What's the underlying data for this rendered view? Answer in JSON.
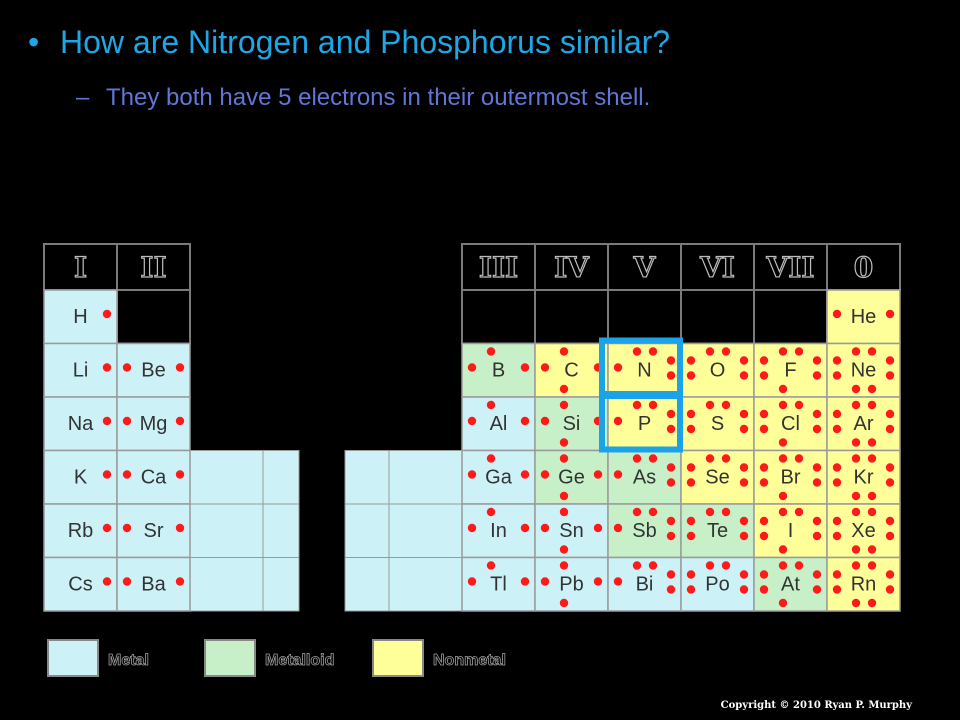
{
  "slide": {
    "bullet": "•",
    "title": "How are Nitrogen and Phosphorus similar?",
    "sub_dash": "–",
    "subtitle": "They both have 5 electrons in their outermost shell."
  },
  "copyright": "Copyright © 2010 Ryan P. Murphy",
  "groups": [
    "I",
    "II",
    "III",
    "IV",
    "V",
    "VI",
    "VII",
    "0"
  ],
  "colors": {
    "metal": "#ccf2f8",
    "metalloid": "#c8f0c8",
    "nonmetal": "#ffff99",
    "electron": "#ff1a1a",
    "highlight": "#1aa3e8"
  },
  "legend": [
    {
      "type": "metal",
      "label": "Metal"
    },
    {
      "type": "metalloid",
      "label": "Metalloid"
    },
    {
      "type": "nonmetal",
      "label": "Nonmetal"
    }
  ],
  "highlighted": [
    "N",
    "P"
  ],
  "elements": [
    {
      "symbol": "H",
      "group": 1,
      "row": 1,
      "type": "metal",
      "electrons": 1
    },
    {
      "symbol": "Li",
      "group": 1,
      "row": 2,
      "type": "metal",
      "electrons": 1
    },
    {
      "symbol": "Na",
      "group": 1,
      "row": 3,
      "type": "metal",
      "electrons": 1
    },
    {
      "symbol": "K",
      "group": 1,
      "row": 4,
      "type": "metal",
      "electrons": 1
    },
    {
      "symbol": "Rb",
      "group": 1,
      "row": 5,
      "type": "metal",
      "electrons": 1
    },
    {
      "symbol": "Cs",
      "group": 1,
      "row": 6,
      "type": "metal",
      "electrons": 1
    },
    {
      "symbol": "Be",
      "group": 2,
      "row": 2,
      "type": "metal",
      "electrons": 2
    },
    {
      "symbol": "Mg",
      "group": 2,
      "row": 3,
      "type": "metal",
      "electrons": 2
    },
    {
      "symbol": "Ca",
      "group": 2,
      "row": 4,
      "type": "metal",
      "electrons": 2
    },
    {
      "symbol": "Sr",
      "group": 2,
      "row": 5,
      "type": "metal",
      "electrons": 2
    },
    {
      "symbol": "Ba",
      "group": 2,
      "row": 6,
      "type": "metal",
      "electrons": 2
    },
    {
      "symbol": "B",
      "group": 3,
      "row": 2,
      "type": "metalloid",
      "electrons": 3
    },
    {
      "symbol": "Al",
      "group": 3,
      "row": 3,
      "type": "metal",
      "electrons": 3
    },
    {
      "symbol": "Ga",
      "group": 3,
      "row": 4,
      "type": "metal",
      "electrons": 3
    },
    {
      "symbol": "In",
      "group": 3,
      "row": 5,
      "type": "metal",
      "electrons": 3
    },
    {
      "symbol": "Tl",
      "group": 3,
      "row": 6,
      "type": "metal",
      "electrons": 3
    },
    {
      "symbol": "C",
      "group": 4,
      "row": 2,
      "type": "nonmetal",
      "electrons": 4
    },
    {
      "symbol": "Si",
      "group": 4,
      "row": 3,
      "type": "metalloid",
      "electrons": 4
    },
    {
      "symbol": "Ge",
      "group": 4,
      "row": 4,
      "type": "metalloid",
      "electrons": 4
    },
    {
      "symbol": "Sn",
      "group": 4,
      "row": 5,
      "type": "metal",
      "electrons": 4
    },
    {
      "symbol": "Pb",
      "group": 4,
      "row": 6,
      "type": "metal",
      "electrons": 4
    },
    {
      "symbol": "N",
      "group": 5,
      "row": 2,
      "type": "nonmetal",
      "electrons": 5
    },
    {
      "symbol": "P",
      "group": 5,
      "row": 3,
      "type": "nonmetal",
      "electrons": 5
    },
    {
      "symbol": "As",
      "group": 5,
      "row": 4,
      "type": "metalloid",
      "electrons": 5
    },
    {
      "symbol": "Sb",
      "group": 5,
      "row": 5,
      "type": "metalloid",
      "electrons": 5
    },
    {
      "symbol": "Bi",
      "group": 5,
      "row": 6,
      "type": "metal",
      "electrons": 5
    },
    {
      "symbol": "O",
      "group": 6,
      "row": 2,
      "type": "nonmetal",
      "electrons": 6
    },
    {
      "symbol": "S",
      "group": 6,
      "row": 3,
      "type": "nonmetal",
      "electrons": 6
    },
    {
      "symbol": "Se",
      "group": 6,
      "row": 4,
      "type": "nonmetal",
      "electrons": 6
    },
    {
      "symbol": "Te",
      "group": 6,
      "row": 5,
      "type": "metalloid",
      "electrons": 6
    },
    {
      "symbol": "Po",
      "group": 6,
      "row": 6,
      "type": "metal",
      "electrons": 6
    },
    {
      "symbol": "F",
      "group": 7,
      "row": 2,
      "type": "nonmetal",
      "electrons": 7
    },
    {
      "symbol": "Cl",
      "group": 7,
      "row": 3,
      "type": "nonmetal",
      "electrons": 7
    },
    {
      "symbol": "Br",
      "group": 7,
      "row": 4,
      "type": "nonmetal",
      "electrons": 7
    },
    {
      "symbol": "I",
      "group": 7,
      "row": 5,
      "type": "nonmetal",
      "electrons": 7
    },
    {
      "symbol": "At",
      "group": 7,
      "row": 6,
      "type": "metalloid",
      "electrons": 7
    },
    {
      "symbol": "He",
      "group": 8,
      "row": 1,
      "type": "nonmetal",
      "electrons": 2
    },
    {
      "symbol": "Ne",
      "group": 8,
      "row": 2,
      "type": "nonmetal",
      "electrons": 8
    },
    {
      "symbol": "Ar",
      "group": 8,
      "row": 3,
      "type": "nonmetal",
      "electrons": 8
    },
    {
      "symbol": "Kr",
      "group": 8,
      "row": 4,
      "type": "nonmetal",
      "electrons": 8
    },
    {
      "symbol": "Xe",
      "group": 8,
      "row": 5,
      "type": "nonmetal",
      "electrons": 8
    },
    {
      "symbol": "Rn",
      "group": 8,
      "row": 6,
      "type": "nonmetal",
      "electrons": 8
    }
  ]
}
